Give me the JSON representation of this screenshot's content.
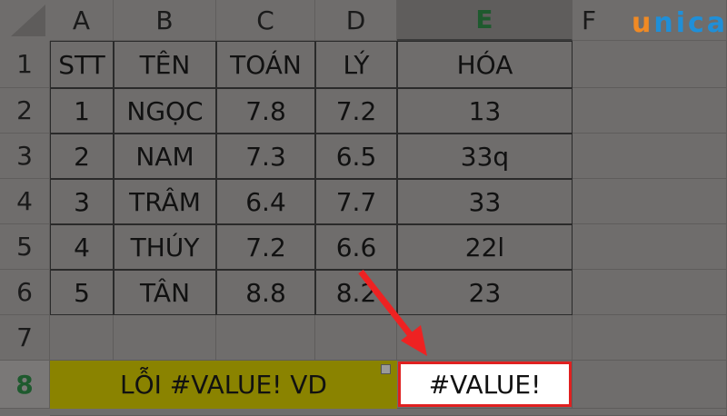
{
  "columns": [
    "A",
    "B",
    "C",
    "D",
    "E",
    "F"
  ],
  "rows": [
    "1",
    "2",
    "3",
    "4",
    "5",
    "6",
    "7",
    "8"
  ],
  "table": {
    "headers": [
      "STT",
      "TÊN",
      "TOÁN",
      "LÝ",
      "HÓA"
    ],
    "data": [
      [
        "1",
        "NGỌC",
        "7.8",
        "7.2",
        "13"
      ],
      [
        "2",
        "NAM",
        "7.3",
        "6.5",
        "33q"
      ],
      [
        "3",
        "TRÂM",
        "6.4",
        "7.7",
        "33"
      ],
      [
        "4",
        "THÚY",
        "7.2",
        "6.6",
        "22l"
      ],
      [
        "5",
        "TÂN",
        "8.8",
        "8.2",
        "23"
      ]
    ]
  },
  "row8": {
    "label": "LỖI #VALUE! VD",
    "result": "#VALUE!"
  },
  "logo": {
    "u": "u",
    "rest": "nica"
  },
  "colors": {
    "background": "#6f6d6c",
    "highlight": "#8a8300",
    "selected_header": "#1e5a2e",
    "error_box": "#e02020",
    "arrow": "#ee2222",
    "logo_orange": "#f08a24",
    "logo_blue": "#1f8fd8"
  }
}
